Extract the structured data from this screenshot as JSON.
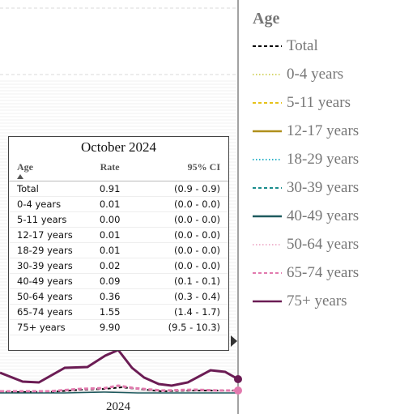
{
  "chart_data": {
    "type": "line",
    "xlabel": "",
    "ylabel": "",
    "x_tick_labels": [
      "2024"
    ],
    "legend": {
      "title": "Age",
      "placement": "right"
    },
    "series": [
      {
        "name": "Total",
        "color": "#000000",
        "dash": "dashed"
      },
      {
        "name": "0-4 years",
        "color": "#d6d66b",
        "dash": "dotted"
      },
      {
        "name": "5-11 years",
        "color": "#e6c21a",
        "dash": "dashed"
      },
      {
        "name": "12-17 years",
        "color": "#b08f1c",
        "dash": "solid"
      },
      {
        "name": "18-29 years",
        "color": "#2fb3c9",
        "dash": "dotted"
      },
      {
        "name": "30-39 years",
        "color": "#1a8c8c",
        "dash": "dashed"
      },
      {
        "name": "40-49 years",
        "color": "#1e5a5e",
        "dash": "solid"
      },
      {
        "name": "50-64 years",
        "color": "#f0b6cf",
        "dash": "dotted"
      },
      {
        "name": "65-74 years",
        "color": "#e27aae",
        "dash": "dashed"
      },
      {
        "name": "75+ years",
        "color": "#6b1c54",
        "dash": "solid"
      }
    ],
    "tooltip": {
      "title": "October 2024",
      "columns": [
        "Age",
        "Rate",
        "95% CI"
      ],
      "rows": [
        {
          "age": "Total",
          "rate": "0.91",
          "ci": "(0.9 - 0.9)"
        },
        {
          "age": "0-4 years",
          "rate": "0.01",
          "ci": "(0.0 - 0.0)"
        },
        {
          "age": "5-11 years",
          "rate": "0.00",
          "ci": "(0.0 - 0.0)"
        },
        {
          "age": "12-17 years",
          "rate": "0.01",
          "ci": "(0.0 - 0.0)"
        },
        {
          "age": "18-29 years",
          "rate": "0.01",
          "ci": "(0.0 - 0.0)"
        },
        {
          "age": "30-39 years",
          "rate": "0.02",
          "ci": "(0.0 - 0.0)"
        },
        {
          "age": "40-49 years",
          "rate": "0.09",
          "ci": "(0.1 - 0.1)"
        },
        {
          "age": "50-64 years",
          "rate": "0.36",
          "ci": "(0.3 - 0.4)"
        },
        {
          "age": "65-74 years",
          "rate": "1.55",
          "ci": "(1.4 - 1.7)"
        },
        {
          "age": "75+ years",
          "rate": "9.90",
          "ci": "(9.5 - 10.3)"
        }
      ]
    }
  }
}
